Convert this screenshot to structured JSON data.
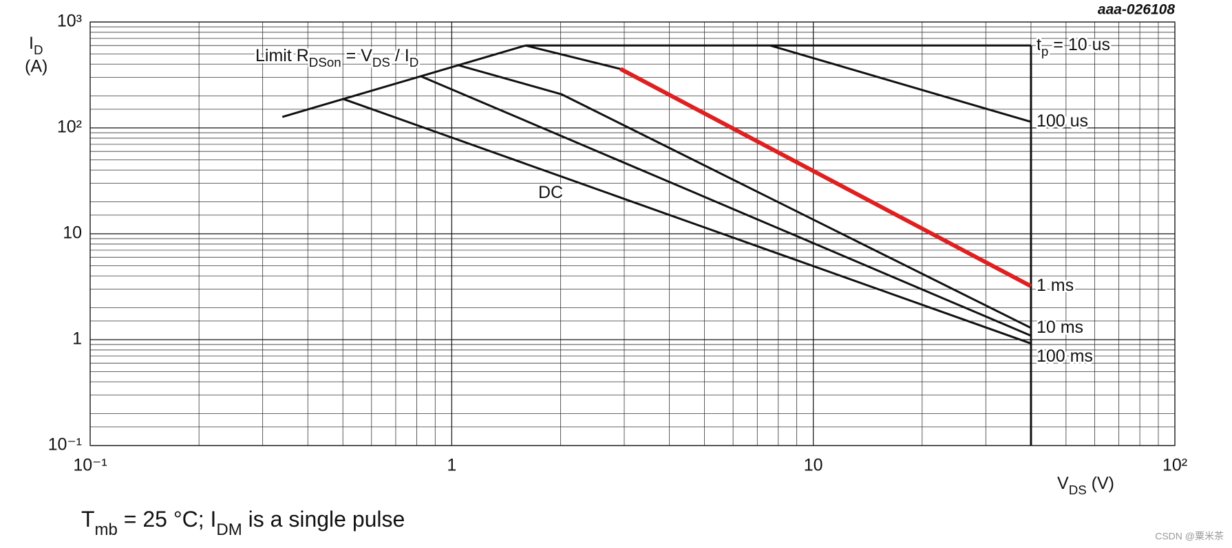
{
  "chart_data": {
    "type": "line",
    "code": "aaa-026108",
    "watermark": "CSDN @粟米茶",
    "ylabel": [
      {
        "text": "I"
      },
      {
        "text": "D",
        "sub": true
      }
    ],
    "ylabel_unit": "(A)",
    "xlabel": [
      {
        "text": "V"
      },
      {
        "text": "DS",
        "sub": true
      },
      {
        "text": " (V)"
      }
    ],
    "footnote": [
      {
        "text": "T"
      },
      {
        "text": "mb",
        "sub": true
      },
      {
        "text": " = 25 °C; I"
      },
      {
        "text": "DM",
        "sub": true
      },
      {
        "text": " is a single pulse"
      }
    ],
    "annotation": [
      {
        "text": "Limit R"
      },
      {
        "text": "DSon",
        "sub": true
      },
      {
        "text": " = V"
      },
      {
        "text": "DS",
        "sub": true
      },
      {
        "text": " / I"
      },
      {
        "text": "D",
        "sub": true
      }
    ],
    "xscale": "log",
    "yscale": "log",
    "grid": true,
    "minor_grid": true,
    "xlim": [
      0.1,
      100
    ],
    "ylim": [
      0.1,
      1000
    ],
    "xticks": [
      {
        "value": 0.1,
        "label": "10⁻¹"
      },
      1,
      10,
      {
        "value": 100,
        "label": "10²"
      }
    ],
    "yticks": [
      {
        "value": 0.1,
        "label": "10⁻¹"
      },
      1,
      10,
      {
        "value": 100,
        "label": "10²"
      },
      {
        "value": 1000,
        "label": "10³"
      }
    ],
    "vds_max": 40,
    "series": [
      {
        "x": [
          0.34,
          1.6
        ],
        "values": [
          127,
          600
        ],
        "color": "#111111"
      },
      {
        "name": [
          {
            "text": "t"
          },
          {
            "text": "p",
            "sub": true
          },
          {
            "text": " = 10 us"
          }
        ],
        "x": [
          1.6,
          40
        ],
        "values": [
          600,
          600
        ],
        "color": "#111111"
      },
      {
        "name": [
          {
            "text": "100 us"
          }
        ],
        "x": [
          7.6,
          40
        ],
        "values": [
          600,
          114
        ],
        "color": "#111111"
      },
      {
        "name": [
          {
            "text": "1 ms"
          }
        ],
        "x": [
          1.6,
          2.93,
          40
        ],
        "values": [
          600,
          360,
          3.2
        ],
        "color": "#111111",
        "segment_colors": [
          "#111111",
          "#e02020"
        ]
      },
      {
        "name": [
          {
            "text": "10 ms"
          }
        ],
        "x": [
          1.04,
          2.01,
          40
        ],
        "values": [
          392,
          208,
          1.29
        ],
        "color": "#111111"
      },
      {
        "name": [
          {
            "text": "100 ms"
          }
        ],
        "x": [
          0.82,
          40
        ],
        "values": [
          308,
          1.09
        ],
        "color": "#111111"
      },
      {
        "name": [
          {
            "text": "DC"
          }
        ],
        "x": [
          0.5,
          40
        ],
        "values": [
          188,
          0.92
        ],
        "color": "#111111"
      }
    ]
  }
}
